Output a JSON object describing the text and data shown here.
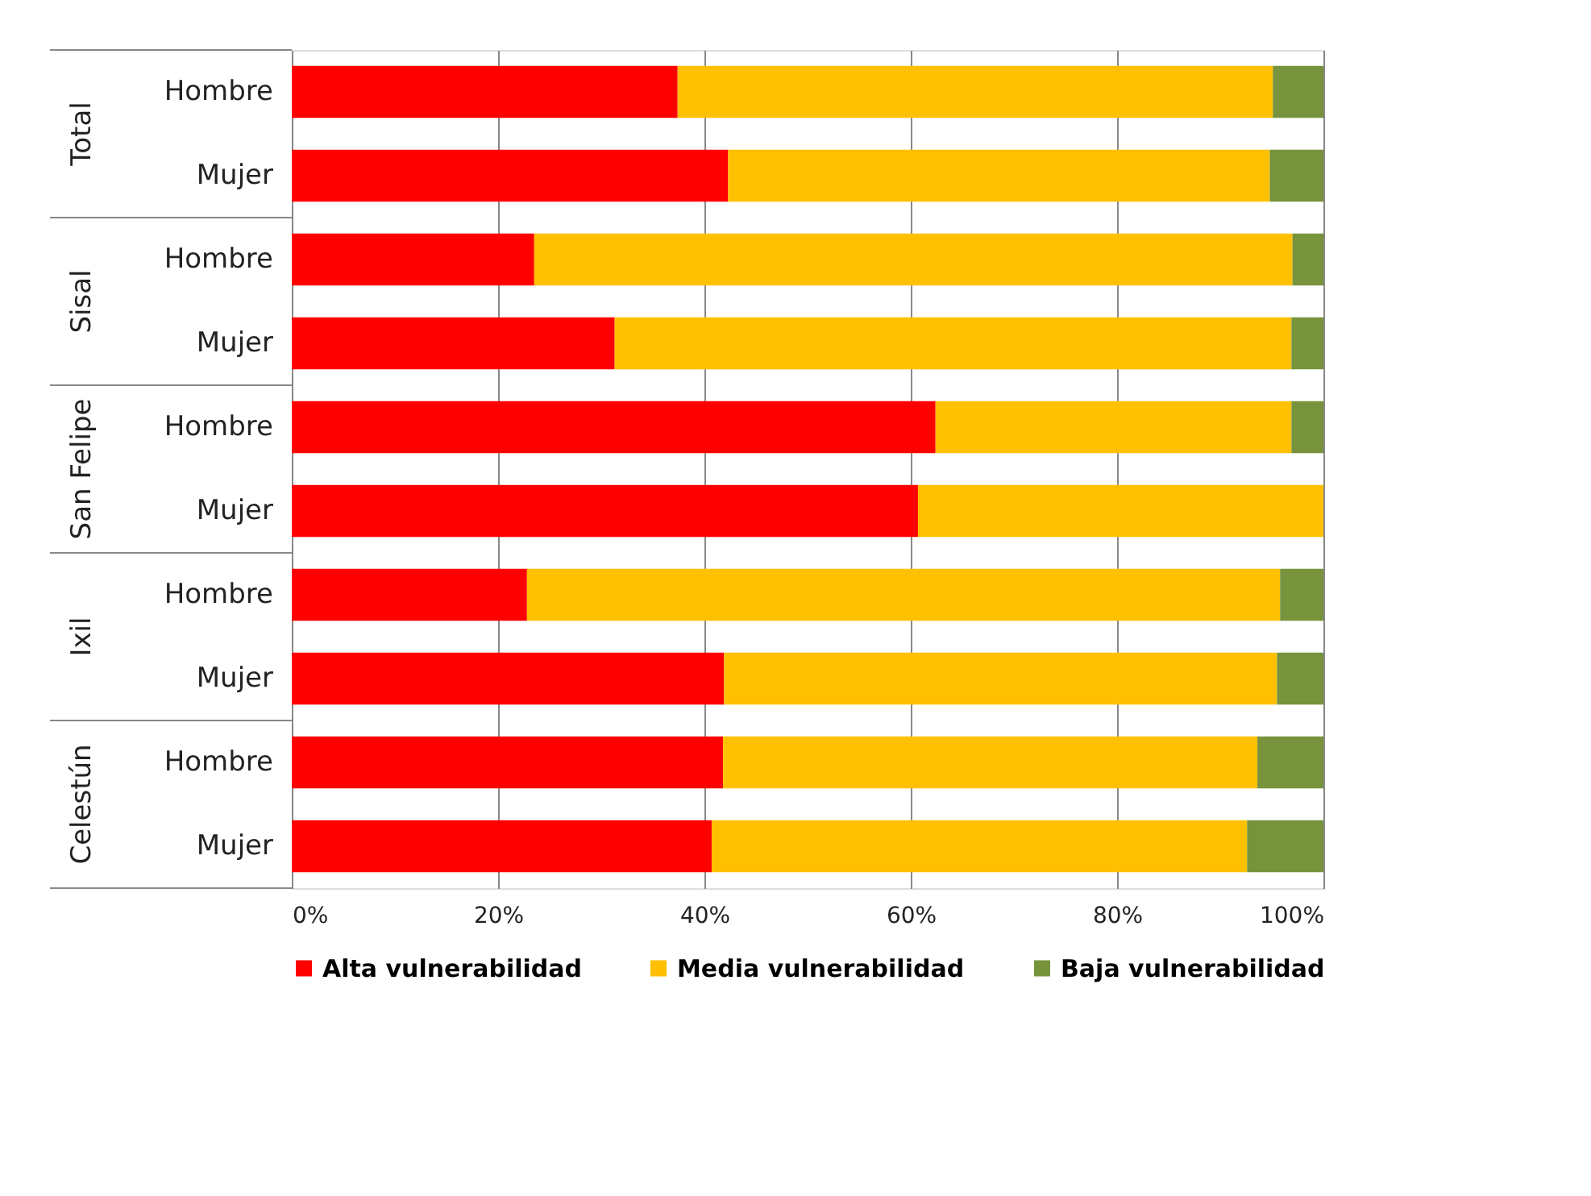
{
  "chart_data": {
    "type": "bar",
    "orientation": "horizontal",
    "stacked": true,
    "categories": [
      "Hombre",
      "Mujer",
      "Hombre",
      "Mujer",
      "Hombre",
      "Mujer",
      "Hombre",
      "Mujer",
      "Hombre",
      "Mujer"
    ],
    "annotations": [
      "Total",
      "Sisal",
      "San Felipe",
      "Ixil",
      "Celestún"
    ],
    "series": [
      {
        "name": "Alta vulnerabilidad",
        "color": "#ff0000",
        "values": [
          37.4,
          42.3,
          23.5,
          31.3,
          62.4,
          60.7,
          22.8,
          41.9,
          41.8,
          40.7
        ]
      },
      {
        "name": "Media vulnerabilidad",
        "color": "#ffc000",
        "values": [
          57.7,
          52.5,
          73.5,
          65.6,
          34.5,
          39.3,
          73.0,
          53.6,
          51.8,
          51.9
        ]
      },
      {
        "name": "Baja vulnerabilidad",
        "color": "#77933c",
        "values": [
          4.9,
          5.2,
          3.0,
          3.1,
          3.1,
          0,
          4.2,
          4.5,
          6.4,
          7.4
        ]
      }
    ],
    "xlim": [
      0,
      100
    ],
    "xticks": [
      {
        "value": 0,
        "label": "0%"
      },
      {
        "value": 20,
        "label": "20%"
      },
      {
        "value": 40,
        "label": "40%"
      },
      {
        "value": 60,
        "label": "60%"
      },
      {
        "value": 80,
        "label": "80%"
      },
      {
        "value": 100,
        "label": "100%"
      }
    ],
    "grid": "x",
    "legend": "bottom"
  }
}
